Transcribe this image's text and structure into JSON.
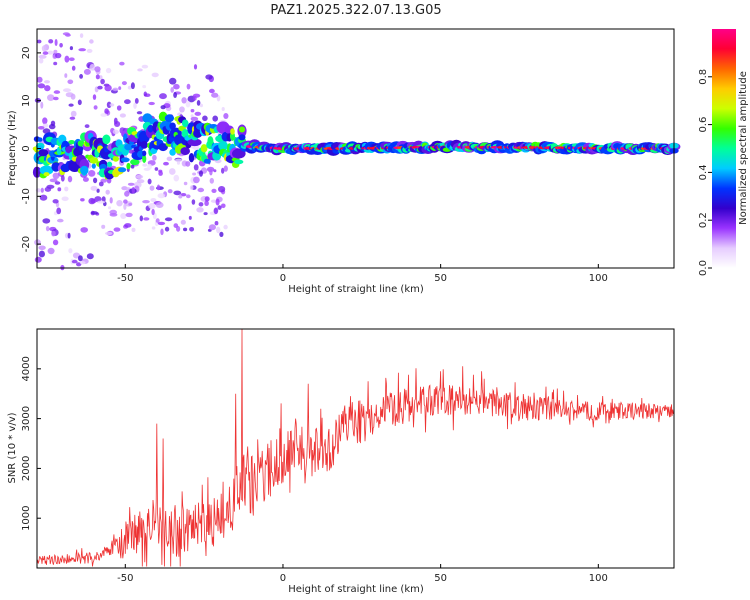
{
  "chart_data": [
    {
      "type": "heatmap",
      "title": "PAZ1.2025.322.07.13.G05",
      "xlabel": "Height of straight line (km)",
      "ylabel": "Frequency (Hz)",
      "xlim": [
        -78,
        124
      ],
      "ylim": [
        -25,
        25
      ],
      "x_ticks": [
        -50,
        0,
        50,
        100
      ],
      "y_ticks": [
        -20,
        -10,
        0,
        10,
        20
      ],
      "colorbar": {
        "label": "Normalized spectral amplitude",
        "range": [
          0.0,
          1.0
        ],
        "ticks": [
          0.0,
          0.2,
          0.4,
          0.6,
          0.8
        ],
        "colors": [
          "#ffffff",
          "#e6ccff",
          "#9933ff",
          "#3300cc",
          "#0033ff",
          "#00ccff",
          "#00ff99",
          "#33ff00",
          "#ccff00",
          "#ffcc00",
          "#ff6600",
          "#ff0033",
          "#ff0088"
        ]
      },
      "ridge": [
        {
          "x": -75,
          "f": -2.0
        },
        {
          "x": -65,
          "f": -1.0
        },
        {
          "x": -55,
          "f": -2.0
        },
        {
          "x": -47,
          "f": 0.0
        },
        {
          "x": -42,
          "f": 3.0
        },
        {
          "x": -35,
          "f": 3.0
        },
        {
          "x": -28,
          "f": 1.0
        },
        {
          "x": -20,
          "f": 0.5
        },
        {
          "x": -12,
          "f": 0.5
        },
        {
          "x": 0,
          "f": 0.0
        },
        {
          "x": 20,
          "f": 0.0
        },
        {
          "x": 50,
          "f": 0.3
        },
        {
          "x": 80,
          "f": 0.2
        },
        {
          "x": 105,
          "f": 0.0
        },
        {
          "x": 124,
          "f": 0.0
        }
      ]
    },
    {
      "type": "line",
      "xlabel": "Height of straight line (km)",
      "ylabel": "SNR (10 * v/v)",
      "xlim": [
        -78,
        124
      ],
      "ylim": [
        0,
        4800
      ],
      "x_ticks": [
        -50,
        0,
        50,
        100
      ],
      "y_ticks": [
        1000,
        2000,
        3000,
        4000
      ],
      "color": "#ee3333",
      "trend": [
        {
          "x": -78,
          "snr": 150
        },
        {
          "x": -60,
          "snr": 200
        },
        {
          "x": -50,
          "snr": 500
        },
        {
          "x": -42,
          "snr": 900
        },
        {
          "x": -35,
          "snr": 700
        },
        {
          "x": -25,
          "snr": 800
        },
        {
          "x": -18,
          "snr": 1000
        },
        {
          "x": -13,
          "snr": 1700
        },
        {
          "x": -8,
          "snr": 1600
        },
        {
          "x": -3,
          "snr": 2100
        },
        {
          "x": 3,
          "snr": 2500
        },
        {
          "x": 8,
          "snr": 2300
        },
        {
          "x": 15,
          "snr": 2400
        },
        {
          "x": 20,
          "snr": 2900
        },
        {
          "x": 30,
          "snr": 3100
        },
        {
          "x": 40,
          "snr": 3300
        },
        {
          "x": 50,
          "snr": 3350
        },
        {
          "x": 60,
          "snr": 3350
        },
        {
          "x": 70,
          "snr": 3300
        },
        {
          "x": 80,
          "snr": 3200
        },
        {
          "x": 95,
          "snr": 3150
        },
        {
          "x": 110,
          "snr": 3150
        },
        {
          "x": 124,
          "snr": 3150
        }
      ],
      "spikes": [
        {
          "x": -40,
          "snr": 2900
        },
        {
          "x": -38,
          "snr": 2600
        },
        {
          "x": -13,
          "snr": 4800
        },
        {
          "x": -15,
          "snr": 3500
        },
        {
          "x": 8,
          "snr": 3700
        },
        {
          "x": 12,
          "snr": 3200
        },
        {
          "x": 57,
          "snr": 4050
        },
        {
          "x": 63,
          "snr": 3950
        },
        {
          "x": 50,
          "snr": 3950
        }
      ],
      "noise_profile": [
        {
          "x": -78,
          "amp": 120
        },
        {
          "x": -55,
          "amp": 150
        },
        {
          "x": -50,
          "amp": 500
        },
        {
          "x": -35,
          "amp": 700
        },
        {
          "x": -22,
          "amp": 650
        },
        {
          "x": -12,
          "amp": 800
        },
        {
          "x": 5,
          "amp": 700
        },
        {
          "x": 20,
          "amp": 500
        },
        {
          "x": 45,
          "amp": 450
        },
        {
          "x": 70,
          "amp": 320
        },
        {
          "x": 124,
          "amp": 180
        }
      ]
    }
  ]
}
